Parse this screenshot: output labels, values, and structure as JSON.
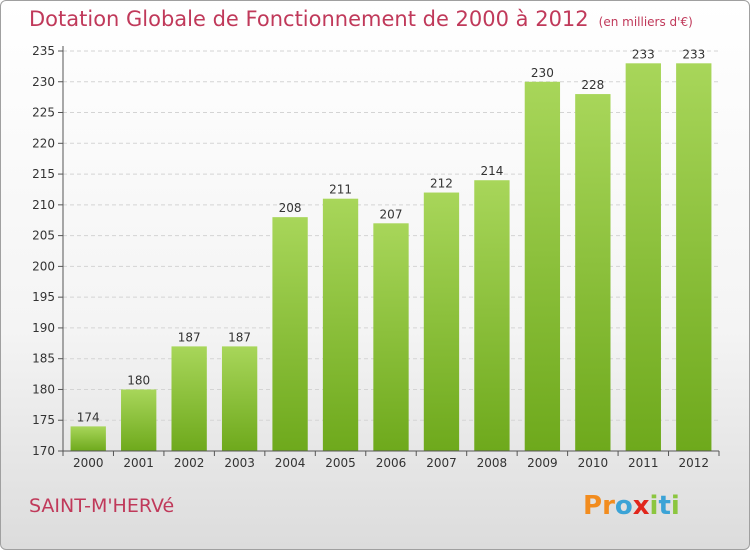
{
  "title": "Dotation Globale de Fonctionnement de 2000 à 2012",
  "subtitle": "(en milliers d'€)",
  "footer": {
    "commune": "SAINT-M'HERVé"
  },
  "brand": {
    "letters": [
      "P",
      "r",
      "o",
      "x",
      "i",
      "t",
      "i"
    ],
    "colors": [
      "#f28c1e",
      "#f28c1e",
      "#3ba3d6",
      "#e1261c",
      "#8cc63f",
      "#3ba3d6",
      "#8cc63f"
    ]
  },
  "colors": {
    "bar_light": "#a8d65a",
    "bar_dark": "#6ea91c",
    "title": "#c0395a"
  },
  "chart_data": {
    "type": "bar",
    "title": "Dotation Globale de Fonctionnement de 2000 à 2012",
    "subtitle": "(en milliers d'€)",
    "categories": [
      "2000",
      "2001",
      "2002",
      "2003",
      "2004",
      "2005",
      "2006",
      "2007",
      "2008",
      "2009",
      "2010",
      "2011",
      "2012"
    ],
    "values": [
      174,
      180,
      187,
      187,
      208,
      211,
      207,
      212,
      214,
      230,
      228,
      233,
      233
    ],
    "ylim": [
      170,
      235
    ],
    "yticks": [
      170,
      175,
      180,
      185,
      190,
      195,
      200,
      205,
      210,
      215,
      220,
      225,
      230,
      235
    ],
    "grid": true,
    "data_labels": true
  }
}
